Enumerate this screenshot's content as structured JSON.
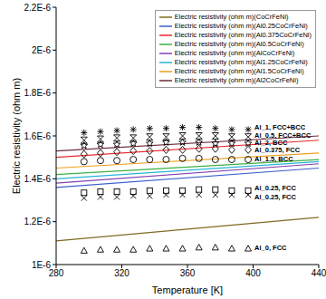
{
  "chart_data": {
    "type": "line",
    "x_label": "Temperature [K]",
    "y_label": "Electric resistivity (ohm m)",
    "xlim": [
      280,
      440
    ],
    "xticks": [
      280,
      320,
      360,
      400,
      440
    ],
    "ylim": [
      1e-06,
      2.2e-06
    ],
    "yticks": [
      {
        "value": 1e-06,
        "label": "1E-6"
      },
      {
        "value": 1.2e-06,
        "label": "1.2E-6"
      },
      {
        "value": 1.4e-06,
        "label": "1.4E-6"
      },
      {
        "value": 1.6e-06,
        "label": "1.6E-6"
      },
      {
        "value": 1.8e-06,
        "label": "1.8E-6"
      },
      {
        "value": 2e-06,
        "label": "2E-6"
      },
      {
        "value": 2.2e-06,
        "label": "2.2E-6"
      }
    ],
    "grid": false,
    "legend": "upper right",
    "series": [
      {
        "name": "Electric resistivity (ohm m)(CoCrFeNi)",
        "type": "line",
        "color": "#7f6a1f",
        "line_style": "solid",
        "x": [
          280,
          440
        ],
        "values": [
          1.11e-06,
          1.22e-06
        ]
      },
      {
        "name": "Electric resistivity (ohm m)(Al0.25CoCrFeNi)",
        "type": "line",
        "color": "#3a5fcd",
        "line_style": "solid",
        "x": [
          280,
          440
        ],
        "values": [
          1.36e-06,
          1.45e-06
        ]
      },
      {
        "name": "Electric resistivity (ohm m)(Al0.375CoCrFeNi)",
        "type": "line",
        "color": "#e8262f",
        "line_style": "solid",
        "x": [
          280,
          440
        ],
        "values": [
          1.5e-06,
          1.58e-06
        ]
      },
      {
        "name": "Electric resistivity (ohm m)(Al0.5CoCrFeNi)",
        "type": "line",
        "color": "#3cb043",
        "line_style": "solid",
        "x": [
          280,
          440
        ],
        "values": [
          1.42e-06,
          1.49e-06
        ]
      },
      {
        "name": "Electric resistivity (ohm m)(AlCoCrFeNi)",
        "type": "line",
        "color": "#8040b0",
        "line_style": "solid",
        "x": [
          280,
          440
        ],
        "values": [
          1.38e-06,
          1.47e-06
        ]
      },
      {
        "name": "Electric resistivity (ohm m)(Al1.25CoCrFeNi)",
        "type": "line",
        "color": "#28b4d8",
        "line_style": "solid",
        "x": [
          280,
          440
        ],
        "values": [
          1.4e-06,
          1.48e-06
        ]
      },
      {
        "name": "Electric resistivity (ohm m)(Al1.5CoCrFeNi)",
        "type": "line",
        "color": "#f0a020",
        "line_style": "solid",
        "x": [
          280,
          440
        ],
        "values": [
          1.45e-06,
          1.52e-06
        ]
      },
      {
        "name": "Electric resistivity (ohm m)(Al2CoCrFeNi)",
        "type": "line",
        "color": "#6b2c3a",
        "line_style": "solid",
        "x": [
          280,
          440
        ],
        "values": [
          1.53e-06,
          1.6e-06
        ]
      },
      {
        "name": "Al_1, FCC+BCC",
        "type": "scatter",
        "color": "#000000",
        "marker": "asterisk",
        "x": [
          297,
          307,
          317,
          327,
          337,
          347,
          357,
          367,
          377,
          387,
          397
        ],
        "values": [
          1.615e-06,
          1.62e-06,
          1.625e-06,
          1.63e-06,
          1.635e-06,
          1.635e-06,
          1.64e-06,
          1.64e-06,
          1.635e-06,
          1.63e-06,
          1.63e-06
        ]
      },
      {
        "name": "Al_0.5, FCC+BCC",
        "type": "scatter",
        "color": "#000000",
        "marker": "hourglass",
        "x": [
          297,
          307,
          317,
          327,
          337,
          347,
          357,
          367,
          377,
          387,
          397
        ],
        "values": [
          1.58e-06,
          1.585e-06,
          1.59e-06,
          1.59e-06,
          1.595e-06,
          1.595e-06,
          1.6e-06,
          1.6e-06,
          1.6e-06,
          1.595e-06,
          1.595e-06
        ]
      },
      {
        "name": "Al_2, BCC",
        "type": "scatter",
        "color": "#000000",
        "marker": "star",
        "x": [
          297,
          307,
          317,
          327,
          337,
          347,
          357,
          367,
          377,
          387,
          397
        ],
        "values": [
          1.555e-06,
          1.56e-06,
          1.56e-06,
          1.565e-06,
          1.565e-06,
          1.57e-06,
          1.57e-06,
          1.57e-06,
          1.565e-06,
          1.565e-06,
          1.565e-06
        ]
      },
      {
        "name": "Al_0.375, FCC",
        "type": "scatter",
        "color": "#000000",
        "marker": "diamond",
        "x": [
          297,
          307,
          317,
          327,
          337,
          347,
          357,
          367,
          377,
          387,
          397
        ],
        "values": [
          1.515e-06,
          1.52e-06,
          1.525e-06,
          1.53e-06,
          1.53e-06,
          1.535e-06,
          1.535e-06,
          1.54e-06,
          1.54e-06,
          1.535e-06,
          1.535e-06
        ]
      },
      {
        "name": "Al_1.5, BCC",
        "type": "scatter",
        "color": "#000000",
        "marker": "circle",
        "x": [
          297,
          307,
          317,
          327,
          337,
          347,
          357,
          367,
          377,
          387,
          397
        ],
        "values": [
          1.48e-06,
          1.485e-06,
          1.485e-06,
          1.49e-06,
          1.49e-06,
          1.49e-06,
          1.495e-06,
          1.495e-06,
          1.49e-06,
          1.49e-06,
          1.49e-06
        ]
      },
      {
        "name": "Al_0.25, FCC",
        "type": "scatter",
        "color": "#000000",
        "marker": "square",
        "x": [
          297,
          307,
          317,
          327,
          337,
          347,
          357,
          367,
          377,
          387,
          397
        ],
        "values": [
          1.335e-06,
          1.34e-06,
          1.34e-06,
          1.34e-06,
          1.345e-06,
          1.345e-06,
          1.345e-06,
          1.35e-06,
          1.35e-06,
          1.345e-06,
          1.345e-06
        ]
      },
      {
        "name": "Al_0.25, FCC",
        "type": "scatter",
        "color": "#000000",
        "marker": "x",
        "x": [
          297,
          307,
          317,
          327,
          337,
          347,
          357,
          367,
          377,
          387,
          397
        ],
        "values": [
          1.31e-06,
          1.315e-06,
          1.315e-06,
          1.32e-06,
          1.32e-06,
          1.325e-06,
          1.325e-06,
          1.325e-06,
          1.325e-06,
          1.325e-06,
          1.325e-06
        ]
      },
      {
        "name": "Al_0, FCC",
        "type": "scatter",
        "color": "#000000",
        "marker": "triangle",
        "x": [
          297,
          307,
          317,
          327,
          337,
          347,
          357,
          367,
          377,
          387,
          397
        ],
        "values": [
          1.065e-06,
          1.07e-06,
          1.07e-06,
          1.07e-06,
          1.075e-06,
          1.075e-06,
          1.075e-06,
          1.08e-06,
          1.08e-06,
          1.075e-06,
          1.075e-06
        ]
      }
    ]
  }
}
